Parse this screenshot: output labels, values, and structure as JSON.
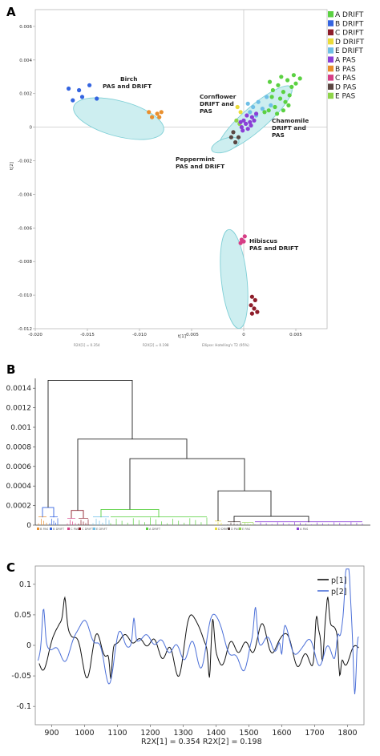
{
  "chart_data": [
    {
      "type": "scatter",
      "panel": "A",
      "xlabel": "t[1]",
      "ylabel": "t[2]",
      "xlim": [
        -0.02,
        0.008
      ],
      "ylim": [
        -0.012,
        0.007
      ],
      "x_ticks": [
        "-0.020",
        "-0.015",
        "-0.010",
        "-0.005",
        "0",
        "0.005"
      ],
      "y_ticks": [
        "0.006",
        "0.004",
        "0.002",
        "0",
        "-0.002",
        "-0.004",
        "-0.006",
        "-0.008",
        "-0.010",
        "-0.012"
      ],
      "footer": {
        "r2x1": "R2X[1] = 0.354",
        "r2x2": "R2X[2] = 0.198",
        "ellipse": "Ellipse: Hotelling's T2 (95%)"
      },
      "legend_placement": "top-right",
      "legend": [
        {
          "label": "A DRIFT",
          "color": "#5bd142"
        },
        {
          "label": "B DRIFT",
          "color": "#3464e0"
        },
        {
          "label": "C DRIFT",
          "color": "#8e1d2a"
        },
        {
          "label": "D DRIFT",
          "color": "#eadc3a"
        },
        {
          "label": "E DRIFT",
          "color": "#6fbfe6"
        },
        {
          "label": "A PAS",
          "color": "#8b3fd6"
        },
        {
          "label": "B PAS",
          "color": "#e98f2d"
        },
        {
          "label": "C PAS",
          "color": "#d63e86"
        },
        {
          "label": "D PAS",
          "color": "#5a4642"
        },
        {
          "label": "E PAS",
          "color": "#8ed449"
        }
      ],
      "clusters": [
        {
          "name": "Birch PAS and DRIFT",
          "points": [
            {
              "g": "B DRIFT",
              "x": -0.0168,
              "y": 0.0023
            },
            {
              "g": "B DRIFT",
              "x": -0.0158,
              "y": 0.0022
            },
            {
              "g": "B DRIFT",
              "x": -0.0148,
              "y": 0.0025
            },
            {
              "g": "B DRIFT",
              "x": -0.0155,
              "y": 0.0018
            },
            {
              "g": "B DRIFT",
              "x": -0.0141,
              "y": 0.0017
            },
            {
              "g": "B DRIFT",
              "x": -0.0164,
              "y": 0.0016
            },
            {
              "g": "B PAS",
              "x": -0.0091,
              "y": 0.0009
            },
            {
              "g": "B PAS",
              "x": -0.0083,
              "y": 0.0008
            },
            {
              "g": "B PAS",
              "x": -0.0079,
              "y": 0.0009
            },
            {
              "g": "B PAS",
              "x": -0.0088,
              "y": 0.0006
            },
            {
              "g": "B PAS",
              "x": -0.0081,
              "y": 0.0006
            }
          ]
        },
        {
          "name": "Cornflower DRIFT and PAS",
          "points": [
            {
              "g": "E DRIFT",
              "x": 0.0009,
              "y": 0.0012
            },
            {
              "g": "E DRIFT",
              "x": 0.0014,
              "y": 0.0015
            },
            {
              "g": "E DRIFT",
              "x": 0.0018,
              "y": 0.0011
            },
            {
              "g": "E DRIFT",
              "x": 0.0006,
              "y": 0.0009
            },
            {
              "g": "E DRIFT",
              "x": 0.0022,
              "y": 0.0018
            },
            {
              "g": "E DRIFT",
              "x": 0.0004,
              "y": 0.0014
            },
            {
              "g": "E DRIFT",
              "x": 0.0012,
              "y": 0.0007
            },
            {
              "g": "E DRIFT",
              "x": 0.0026,
              "y": 0.0013
            },
            {
              "g": "E PAS",
              "x": -0.0004,
              "y": 0.0002
            },
            {
              "g": "E PAS",
              "x": -0.0007,
              "y": 0.0004
            }
          ]
        },
        {
          "name": "Chamomile DRIFT and PAS",
          "points": [
            {
              "g": "A DRIFT",
              "x": 0.0028,
              "y": 0.0022
            },
            {
              "g": "A DRIFT",
              "x": 0.0033,
              "y": 0.0025
            },
            {
              "g": "A DRIFT",
              "x": 0.0038,
              "y": 0.0021
            },
            {
              "g": "A DRIFT",
              "x": 0.0042,
              "y": 0.0028
            },
            {
              "g": "A DRIFT",
              "x": 0.0046,
              "y": 0.0024
            },
            {
              "g": "A DRIFT",
              "x": 0.0035,
              "y": 0.0017
            },
            {
              "g": "A DRIFT",
              "x": 0.004,
              "y": 0.0015
            },
            {
              "g": "A DRIFT",
              "x": 0.003,
              "y": 0.0012
            },
            {
              "g": "A DRIFT",
              "x": 0.0024,
              "y": 0.001
            },
            {
              "g": "A DRIFT",
              "x": 0.0044,
              "y": 0.0019
            },
            {
              "g": "A DRIFT",
              "x": 0.0036,
              "y": 0.003
            },
            {
              "g": "A DRIFT",
              "x": 0.005,
              "y": 0.0026
            },
            {
              "g": "A DRIFT",
              "x": 0.0048,
              "y": 0.0031
            },
            {
              "g": "A DRIFT",
              "x": 0.0027,
              "y": 0.0018
            },
            {
              "g": "A DRIFT",
              "x": 0.002,
              "y": 0.0009
            },
            {
              "g": "A DRIFT",
              "x": 0.0032,
              "y": 0.0008
            },
            {
              "g": "A DRIFT",
              "x": 0.0038,
              "y": 0.001
            },
            {
              "g": "A DRIFT",
              "x": 0.0043,
              "y": 0.0013
            },
            {
              "g": "A DRIFT",
              "x": 0.0054,
              "y": 0.0029
            },
            {
              "g": "A DRIFT",
              "x": 0.0025,
              "y": 0.0027
            },
            {
              "g": "A PAS",
              "x": -0.0002,
              "y": 0.0
            },
            {
              "g": "A PAS",
              "x": 0.0002,
              "y": 0.0002
            },
            {
              "g": "A PAS",
              "x": 0.0006,
              "y": 0.0003
            },
            {
              "g": "A PAS",
              "x": 0.0004,
              "y": -0.0001
            },
            {
              "g": "A PAS",
              "x": 0.0,
              "y": 0.0004
            },
            {
              "g": "A PAS",
              "x": 0.0008,
              "y": 0.0006
            },
            {
              "g": "A PAS",
              "x": 0.001,
              "y": 0.0004
            },
            {
              "g": "A PAS",
              "x": -0.0003,
              "y": 0.0003
            },
            {
              "g": "A PAS",
              "x": 0.0003,
              "y": 0.0007
            },
            {
              "g": "A PAS",
              "x": 0.0012,
              "y": 0.0008
            },
            {
              "g": "A PAS",
              "x": -0.0001,
              "y": -0.0002
            },
            {
              "g": "A PAS",
              "x": 0.0007,
              "y": 0.0001
            }
          ]
        },
        {
          "name": "Peppermint PAS and DRIFT",
          "points": [
            {
              "g": "D PAS",
              "x": -0.0012,
              "y": -0.0006
            },
            {
              "g": "D PAS",
              "x": -0.0008,
              "y": -0.0009
            },
            {
              "g": "D PAS",
              "x": -0.0005,
              "y": -0.0006
            },
            {
              "g": "D PAS",
              "x": -0.001,
              "y": -0.0003
            },
            {
              "g": "D DRIFT",
              "x": -0.0006,
              "y": 0.0012
            },
            {
              "g": "D DRIFT",
              "x": -0.0003,
              "y": 0.0009
            }
          ]
        },
        {
          "name": "Hibiscus PAS and DRIFT",
          "points": [
            {
              "g": "C PAS",
              "x": -0.0002,
              "y": -0.0067
            },
            {
              "g": "C PAS",
              "x": 0.0001,
              "y": -0.0065
            },
            {
              "g": "C PAS",
              "x": -0.0003,
              "y": -0.0069
            },
            {
              "g": "C PAS",
              "x": 0.0,
              "y": -0.0068
            },
            {
              "g": "C DRIFT",
              "x": 0.0008,
              "y": -0.0101
            },
            {
              "g": "C DRIFT",
              "x": 0.0011,
              "y": -0.0103
            },
            {
              "g": "C DRIFT",
              "x": 0.0007,
              "y": -0.0106
            },
            {
              "g": "C DRIFT",
              "x": 0.001,
              "y": -0.0108
            },
            {
              "g": "C DRIFT",
              "x": 0.0013,
              "y": -0.011
            },
            {
              "g": "C DRIFT",
              "x": 0.0008,
              "y": -0.0111
            }
          ]
        }
      ],
      "annotations": [
        {
          "lines": [
            "Birch",
            "PAS and DRIFT"
          ]
        },
        {
          "lines": [
            "Cornflower",
            "DRIFT and",
            "PAS"
          ]
        },
        {
          "lines": [
            "Chamomile",
            "DRIFT and",
            "PAS"
          ]
        },
        {
          "lines": [
            "Peppermint",
            "PAS and DRIFT"
          ]
        },
        {
          "lines": [
            "Hibiscus",
            "PAS and DRIFT"
          ]
        }
      ]
    },
    {
      "type": "dendrogram",
      "panel": "B",
      "ylim": [
        0,
        0.0015
      ],
      "y_ticks": [
        "0.0014",
        "0.0012",
        "0.001",
        "0.0008",
        "0.0006",
        "0.0004",
        "0.0002",
        "0"
      ],
      "leaf_groups": [
        {
          "label": "B PAS",
          "color": "#e98f2d"
        },
        {
          "label": "B DRIFT",
          "color": "#3464e0"
        },
        {
          "label": "C PAS",
          "color": "#d63e86"
        },
        {
          "label": "C DRIFT",
          "color": "#8e1d2a"
        },
        {
          "label": "E DRIFT",
          "color": "#6fbfe6"
        },
        {
          "label": "A DRIFT",
          "color": "#5bd142"
        },
        {
          "label": "D DRIFT",
          "color": "#eadc3a"
        },
        {
          "label": "D PAS",
          "color": "#5a4642"
        },
        {
          "label": "E PAS",
          "color": "#8ed449"
        },
        {
          "label": "A PAS",
          "color": "#8b3fd6"
        }
      ],
      "merge_heights": [
        0.00148,
        0.00088,
        0.00068,
        0.00035,
        0.00018,
        0.00015,
        0.00016,
        9e-05
      ]
    },
    {
      "type": "line",
      "panel": "C",
      "x_ticks": [
        "900",
        "1000",
        "1100",
        "1200",
        "1300",
        "1400",
        "1500",
        "1600",
        "1700",
        "1800"
      ],
      "y_ticks": [
        "0.1",
        "0.05",
        "0",
        "-0.05",
        "-0.1"
      ],
      "xlim": [
        850,
        1850
      ],
      "ylim": [
        -0.13,
        0.13
      ],
      "footer": {
        "r2x": "R2X[1] = 0.354 R2X[2] = 0.198"
      },
      "legend_placement": "top-right",
      "series": [
        {
          "name": "p[1]",
          "color": "#111111"
        },
        {
          "name": "p[2]",
          "color": "#4b6fd8"
        }
      ]
    }
  ]
}
